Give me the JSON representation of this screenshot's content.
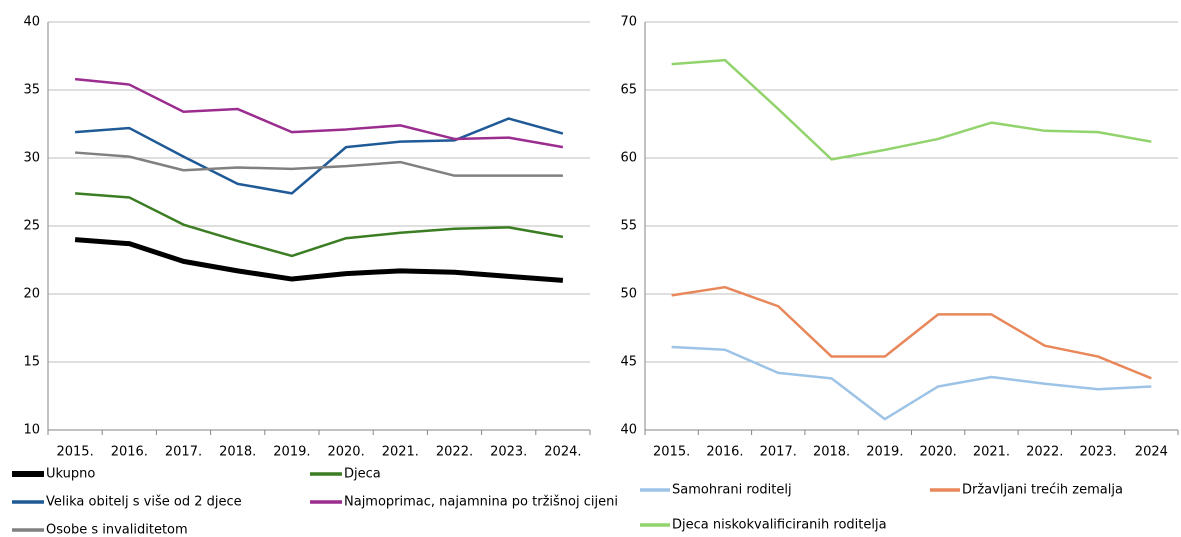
{
  "chart_data": [
    {
      "type": "line",
      "categories": [
        "2015.",
        "2016.",
        "2017.",
        "2018.",
        "2019.",
        "2020.",
        "2021.",
        "2022.",
        "2023.",
        "2024."
      ],
      "ylim": [
        10,
        40
      ],
      "yticks": [
        10,
        15,
        20,
        25,
        30,
        35,
        40
      ],
      "grid": true,
      "series": [
        {
          "name": "Ukupno",
          "color": "#000000",
          "values": [
            24.0,
            23.7,
            22.4,
            21.7,
            21.1,
            21.5,
            21.7,
            21.6,
            21.3,
            21.0
          ]
        },
        {
          "name": "Djeca",
          "color": "#3a7d22",
          "values": [
            27.4,
            27.1,
            25.1,
            23.9,
            22.8,
            24.1,
            24.5,
            24.8,
            24.9,
            24.2
          ]
        },
        {
          "name": "Velika obitelj s više od 2 djece",
          "color": "#1f5a96",
          "values": [
            31.9,
            32.2,
            30.1,
            28.1,
            27.4,
            30.8,
            31.2,
            31.3,
            32.9,
            31.8
          ]
        },
        {
          "name": "Najmoprimac, najamnina po tržišnoj cijeni",
          "color": "#9b2d8f",
          "values": [
            35.8,
            35.4,
            33.4,
            33.6,
            31.9,
            32.1,
            32.4,
            31.4,
            31.5,
            30.8
          ]
        },
        {
          "name": "Osobe s invaliditetom",
          "color": "#808080",
          "values": [
            30.4,
            30.1,
            29.1,
            29.3,
            29.2,
            29.4,
            29.7,
            28.7,
            28.7,
            28.7
          ]
        }
      ]
    },
    {
      "type": "line",
      "categories": [
        "2015.",
        "2016.",
        "2017.",
        "2018.",
        "2019.",
        "2020.",
        "2021.",
        "2022.",
        "2023.",
        "2024"
      ],
      "ylim": [
        40,
        70
      ],
      "yticks": [
        40,
        45,
        50,
        55,
        60,
        65,
        70
      ],
      "grid": true,
      "series": [
        {
          "name": "Samohrani roditelj",
          "color": "#9dc3e6",
          "values": [
            46.1,
            45.9,
            44.2,
            43.8,
            40.8,
            43.2,
            43.9,
            43.4,
            43.0,
            43.2
          ]
        },
        {
          "name": "Državljani trećih zemalja",
          "color": "#e8875a",
          "values": [
            49.9,
            50.5,
            49.1,
            45.4,
            45.4,
            48.5,
            48.5,
            46.2,
            45.4,
            43.8
          ]
        },
        {
          "name": "Djeca niskokvalificiranih roditelja",
          "color": "#92d36e",
          "values": [
            66.9,
            67.2,
            63.6,
            59.9,
            60.6,
            61.4,
            62.6,
            62.0,
            61.9,
            61.2
          ]
        }
      ]
    }
  ]
}
